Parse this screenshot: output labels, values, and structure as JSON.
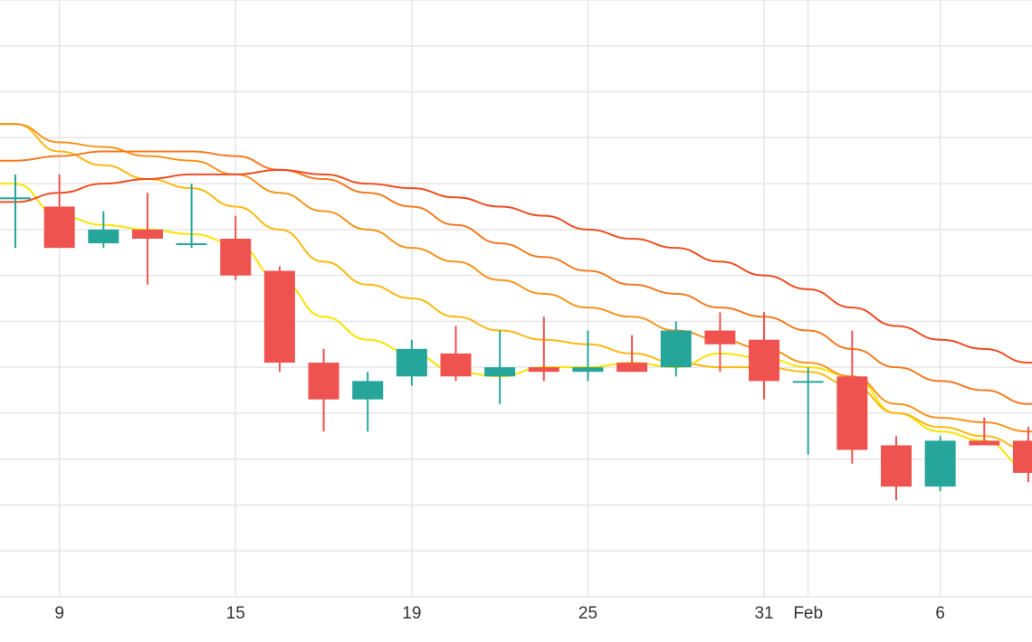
{
  "chart_data": {
    "type": "candlestick",
    "title": "",
    "xlabel": "",
    "ylabel": "",
    "grid": true,
    "x_ticks": [
      "9",
      "15",
      "19",
      "25",
      "31",
      "Feb",
      "6"
    ],
    "ylim": [
      0,
      13
    ],
    "candles": [
      {
        "open": 8.7,
        "high": 9.2,
        "low": 7.6,
        "close": 8.7
      },
      {
        "open": 8.5,
        "high": 9.2,
        "low": 7.6,
        "close": 7.6
      },
      {
        "open": 7.7,
        "high": 8.4,
        "low": 7.6,
        "close": 8.0
      },
      {
        "open": 8.0,
        "high": 8.8,
        "low": 6.8,
        "close": 7.8
      },
      {
        "open": 7.7,
        "high": 9.0,
        "low": 7.6,
        "close": 7.7
      },
      {
        "open": 7.8,
        "high": 8.3,
        "low": 6.9,
        "close": 7.0
      },
      {
        "open": 7.1,
        "high": 7.2,
        "low": 4.9,
        "close": 5.1
      },
      {
        "open": 5.1,
        "high": 5.4,
        "low": 3.6,
        "close": 4.3
      },
      {
        "open": 4.3,
        "high": 4.9,
        "low": 3.6,
        "close": 4.7
      },
      {
        "open": 4.8,
        "high": 5.6,
        "low": 4.6,
        "close": 5.4
      },
      {
        "open": 5.3,
        "high": 5.9,
        "low": 4.7,
        "close": 4.8
      },
      {
        "open": 4.8,
        "high": 5.8,
        "low": 4.2,
        "close": 5.0
      },
      {
        "open": 5.0,
        "high": 6.1,
        "low": 4.7,
        "close": 4.9
      },
      {
        "open": 4.9,
        "high": 5.8,
        "low": 4.7,
        "close": 5.0
      },
      {
        "open": 5.1,
        "high": 5.7,
        "low": 4.9,
        "close": 4.9
      },
      {
        "open": 5.0,
        "high": 6.0,
        "low": 4.8,
        "close": 5.8
      },
      {
        "open": 5.8,
        "high": 6.2,
        "low": 4.9,
        "close": 5.5
      },
      {
        "open": 5.6,
        "high": 6.2,
        "low": 4.3,
        "close": 4.7
      },
      {
        "open": 4.7,
        "high": 5.0,
        "low": 3.1,
        "close": 4.7
      },
      {
        "open": 4.8,
        "high": 5.8,
        "low": 2.9,
        "close": 3.2
      },
      {
        "open": 3.3,
        "high": 3.5,
        "low": 2.1,
        "close": 2.4
      },
      {
        "open": 2.4,
        "high": 3.5,
        "low": 2.3,
        "close": 3.4
      },
      {
        "open": 3.4,
        "high": 3.9,
        "low": 3.3,
        "close": 3.3
      },
      {
        "open": 3.4,
        "high": 3.7,
        "low": 2.5,
        "close": 2.7
      }
    ],
    "series": [
      {
        "values": [
          9.0,
          8.3,
          8.1,
          8.0,
          7.9,
          7.7,
          6.9,
          6.1,
          5.6,
          5.3,
          4.9,
          4.8,
          5.0,
          5.0,
          5.1,
          5.0,
          5.3,
          5.2,
          5.0,
          4.8,
          4.0,
          3.6,
          3.4,
          2.8
        ]
      },
      {
        "values": [
          10.3,
          9.7,
          9.4,
          9.1,
          8.9,
          8.5,
          8.0,
          7.3,
          6.8,
          6.5,
          6.1,
          5.8,
          5.6,
          5.5,
          5.3,
          5.1,
          5.0,
          5.0,
          4.9,
          4.6,
          4.0,
          3.7,
          3.5,
          3.2
        ]
      },
      {
        "values": [
          10.3,
          9.9,
          9.8,
          9.6,
          9.5,
          9.2,
          8.8,
          8.4,
          8.0,
          7.6,
          7.3,
          6.9,
          6.6,
          6.3,
          6.1,
          5.8,
          5.6,
          5.4,
          5.1,
          4.8,
          4.2,
          3.9,
          3.8,
          3.6
        ]
      },
      {
        "values": [
          9.5,
          9.6,
          9.7,
          9.7,
          9.7,
          9.6,
          9.3,
          9.1,
          8.8,
          8.5,
          8.1,
          7.7,
          7.4,
          7.1,
          6.8,
          6.6,
          6.3,
          6.1,
          5.8,
          5.4,
          5.0,
          4.7,
          4.5,
          4.2
        ]
      },
      {
        "values": [
          8.6,
          8.8,
          9.0,
          9.1,
          9.2,
          9.2,
          9.3,
          9.2,
          9.0,
          8.9,
          8.7,
          8.5,
          8.3,
          8.0,
          7.8,
          7.6,
          7.3,
          7.0,
          6.7,
          6.3,
          5.9,
          5.6,
          5.4,
          5.1
        ]
      }
    ]
  },
  "colors": {
    "up": "#26a69a",
    "down": "#ef5350",
    "ma": [
      "#fce300",
      "#fdb913",
      "#f7941d",
      "#f57a22",
      "#f04e23"
    ],
    "grid": "#e6e6e6"
  }
}
